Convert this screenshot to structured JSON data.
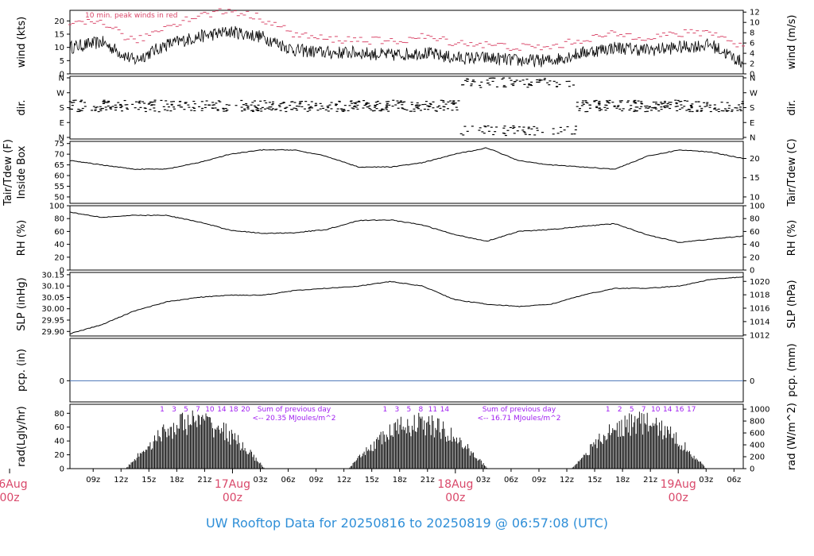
{
  "colors": {
    "axis": "#000000",
    "accent_red": "#d9486a",
    "purple": "#a020f0",
    "blue_line": "#4a74b6",
    "title_blue": "#2f8fd8"
  },
  "footer": {
    "title": "UW Rooftop Data for 20250816  to  20250819 @ 06:57:08  (UTC)"
  },
  "x_axis": {
    "hour_ticks": [
      "09z",
      "12z",
      "15z",
      "18z",
      "21z",
      "03z",
      "06z",
      "09z",
      "12z",
      "15z",
      "18z",
      "21z",
      "03z",
      "06z",
      "09z",
      "12z",
      "15z",
      "18z",
      "21z",
      "03z",
      "06z"
    ],
    "date_labels": [
      {
        "date": "16Aug",
        "time": "00z"
      },
      {
        "date": "17Aug",
        "time": "00z"
      },
      {
        "date": "18Aug",
        "time": "00z"
      },
      {
        "date": "19Aug",
        "time": "00z"
      }
    ]
  },
  "chart_data": [
    {
      "type": "line",
      "ylabel": "wind (kts)",
      "ylabel_right": "wind (m/s)",
      "yticks": [
        "0",
        "5",
        "10",
        "15",
        "20"
      ],
      "yticks_right": [
        "0",
        "2",
        "4",
        "6",
        "8",
        "10",
        "12"
      ],
      "ylim": [
        0,
        24
      ],
      "annotation": "10 min. peak winds in red",
      "series": [
        {
          "values_at_hours": [
            10,
            12,
            5,
            11,
            14,
            16,
            14,
            9,
            8,
            8,
            7,
            8,
            6,
            6,
            5,
            5,
            8,
            10,
            9,
            10,
            11,
            4
          ]
        },
        {
          "values_at_hours": [
            18,
            20,
            12,
            18,
            22,
            24,
            21,
            15,
            13,
            13,
            12,
            14,
            12,
            11,
            10,
            10,
            13,
            15,
            14,
            15,
            16,
            10
          ]
        }
      ]
    },
    {
      "type": "scatter",
      "ylabel": "dir.",
      "ylabel_right": "dir.",
      "yticks": [
        "N",
        "E",
        "S",
        "W",
        "N"
      ],
      "yticks_right": [
        "N",
        "E",
        "S",
        "W",
        "N"
      ],
      "ylim": [
        0,
        360
      ]
    },
    {
      "type": "line",
      "ylabel": "Tair/Tdew (F)",
      "ylabel2": "Inside Box",
      "ylabel_right": "Tair/Tdew (C)",
      "yticks": [
        "50",
        "55",
        "60",
        "65",
        "70",
        "75"
      ],
      "yticks_right": [
        "10",
        "15",
        "20"
      ],
      "ylim": [
        47,
        76
      ],
      "series": [
        {
          "values_at_hours": [
            67,
            65,
            63,
            63,
            66,
            70,
            72,
            72,
            69,
            64,
            64,
            66,
            70,
            73,
            67,
            65,
            64,
            63,
            69,
            72,
            71,
            68
          ]
        }
      ]
    },
    {
      "type": "line",
      "ylabel": "RH (%)",
      "ylabel_right": "RH (%)",
      "yticks": [
        "0",
        "20",
        "40",
        "60",
        "80",
        "100"
      ],
      "ylim": [
        0,
        100
      ],
      "series": [
        {
          "values_at_hours": [
            90,
            82,
            85,
            85,
            75,
            62,
            57,
            58,
            63,
            77,
            78,
            70,
            55,
            45,
            60,
            63,
            68,
            72,
            55,
            43,
            48,
            53
          ]
        }
      ]
    },
    {
      "type": "line",
      "ylabel": "SLP (inHg)",
      "ylabel_right": "SLP (hPa)",
      "yticks": [
        "29.90",
        "29.95",
        "30.00",
        "30.05",
        "30.10",
        "30.15"
      ],
      "yticks_right": [
        "1012",
        "1014",
        "1016",
        "1018",
        "1020"
      ],
      "ylim": [
        29.88,
        30.16
      ],
      "series": [
        {
          "values_at_hours": [
            29.89,
            29.93,
            29.99,
            30.03,
            30.05,
            30.06,
            30.06,
            30.08,
            30.09,
            30.1,
            30.12,
            30.1,
            30.04,
            30.02,
            30.01,
            30.02,
            30.06,
            30.09,
            30.09,
            30.1,
            30.13,
            30.14
          ]
        }
      ]
    },
    {
      "type": "line",
      "ylabel": "pcp. (in)",
      "ylabel_right": "pcp. (mm)",
      "yticks": [
        "0"
      ],
      "yticks_right": [
        "0"
      ],
      "ylim": [
        -0.5,
        1
      ]
    },
    {
      "type": "bar",
      "ylabel": "rad(Lgly/hr)",
      "ylabel_right": "rad (W/m^2)",
      "yticks": [
        "0",
        "20",
        "40",
        "60",
        "80"
      ],
      "yticks_right": [
        "0",
        "200",
        "400",
        "600",
        "800",
        "1000"
      ],
      "ylim": [
        0,
        93
      ],
      "day_hour_labels": [
        [
          "1",
          "3",
          "5",
          "7",
          "10",
          "14",
          "18",
          "20"
        ],
        [
          "1",
          "3",
          "5",
          "8",
          "11",
          "14"
        ],
        [
          "1",
          "2",
          "5",
          "7",
          "10",
          "14",
          "16",
          "17"
        ]
      ],
      "daily_sums": [
        {
          "label": "Sum of previous day",
          "value": "<-- 20.35 MJoules/m^2"
        },
        {
          "label": "Sum of previous day",
          "value": "<-- 16.71 MJoules/m^2"
        }
      ]
    }
  ]
}
